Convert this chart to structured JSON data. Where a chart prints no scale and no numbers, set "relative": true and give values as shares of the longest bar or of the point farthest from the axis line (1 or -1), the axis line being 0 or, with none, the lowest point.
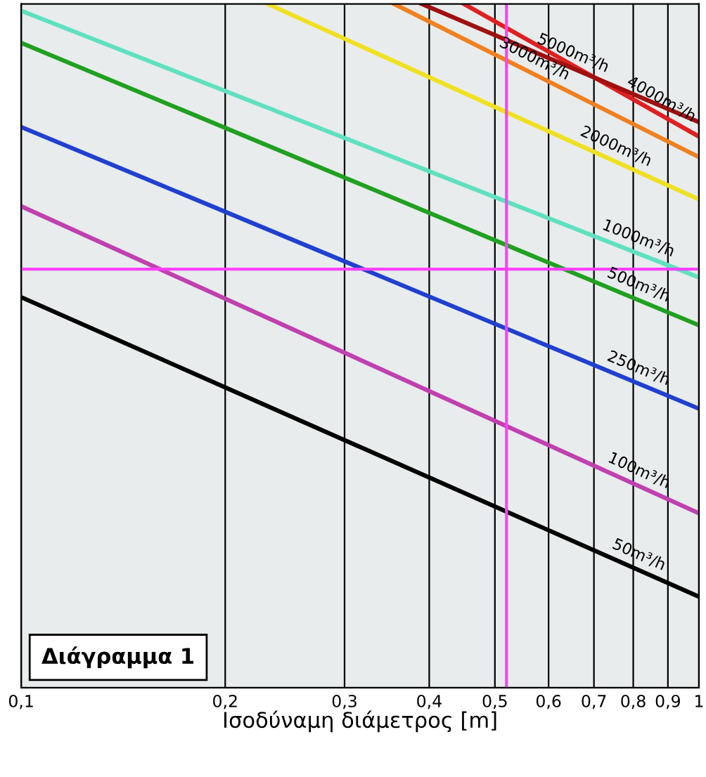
{
  "chart_data": {
    "type": "line",
    "relative": true,
    "xlabel": "Ισοδύναμη διάμετρος [m]",
    "log": "x",
    "grid": "x",
    "legend": false,
    "marker": "none",
    "line_style": "solid",
    "xlim": [
      0.1,
      1
    ],
    "xticks": [
      {
        "value": 0.1,
        "label": "0,1"
      },
      {
        "value": 0.2,
        "label": "0,2"
      },
      {
        "value": 0.3,
        "label": "0,3"
      },
      {
        "value": 0.4,
        "label": "0,4"
      },
      {
        "value": 0.5,
        "label": "0,5"
      },
      {
        "value": 0.6,
        "label": "0,6"
      },
      {
        "value": 0.7,
        "label": "0,7"
      },
      {
        "value": 0.8,
        "label": "0,8"
      },
      {
        "value": 0.9,
        "label": "0,9"
      },
      {
        "value": 1,
        "label": "1"
      }
    ],
    "series": [
      {
        "name": "50m³/h",
        "color": "#000000",
        "x": [
          0.1,
          1
        ],
        "values": [
          0.571,
          0.133
        ]
      },
      {
        "name": "100m³/h",
        "color": "#c040b0",
        "x": [
          0.1,
          1
        ],
        "values": [
          0.704,
          0.255
        ]
      },
      {
        "name": "250m³/h",
        "color": "#2040d0",
        "x": [
          0.1,
          1
        ],
        "values": [
          0.82,
          0.408
        ]
      },
      {
        "name": "500m³/h",
        "color": "#20a020",
        "x": [
          0.1,
          1
        ],
        "values": [
          0.943,
          0.53
        ]
      },
      {
        "name": "1000m³/h",
        "color": "#60e0c0",
        "x": [
          0.1,
          1
        ],
        "values": [
          0.99,
          0.6
        ]
      },
      {
        "name": "2000m³/h",
        "color": "#f0e020",
        "x": [
          0.231,
          1
        ],
        "values": [
          1,
          0.714
        ]
      },
      {
        "name": "3000m³/h",
        "color": "#f08020",
        "x": [
          0.355,
          1
        ],
        "values": [
          1,
          0.776
        ]
      },
      {
        "name": "4000m³/h",
        "color": "#e02020",
        "x": [
          0.45,
          1
        ],
        "values": [
          1,
          0.806
        ]
      },
      {
        "name": "5000m³/h",
        "color": "#a01010",
        "x": [
          0.39,
          1
        ],
        "values": [
          1,
          0.827
        ]
      }
    ],
    "ref_lines": [
      {
        "axis": "x",
        "value": 0.52,
        "color": "#ff40ff"
      },
      {
        "axis": "y",
        "value": 0.612,
        "color": "#ff40ff"
      }
    ],
    "annotations": [
      "Διάγραμμα 1"
    ]
  }
}
